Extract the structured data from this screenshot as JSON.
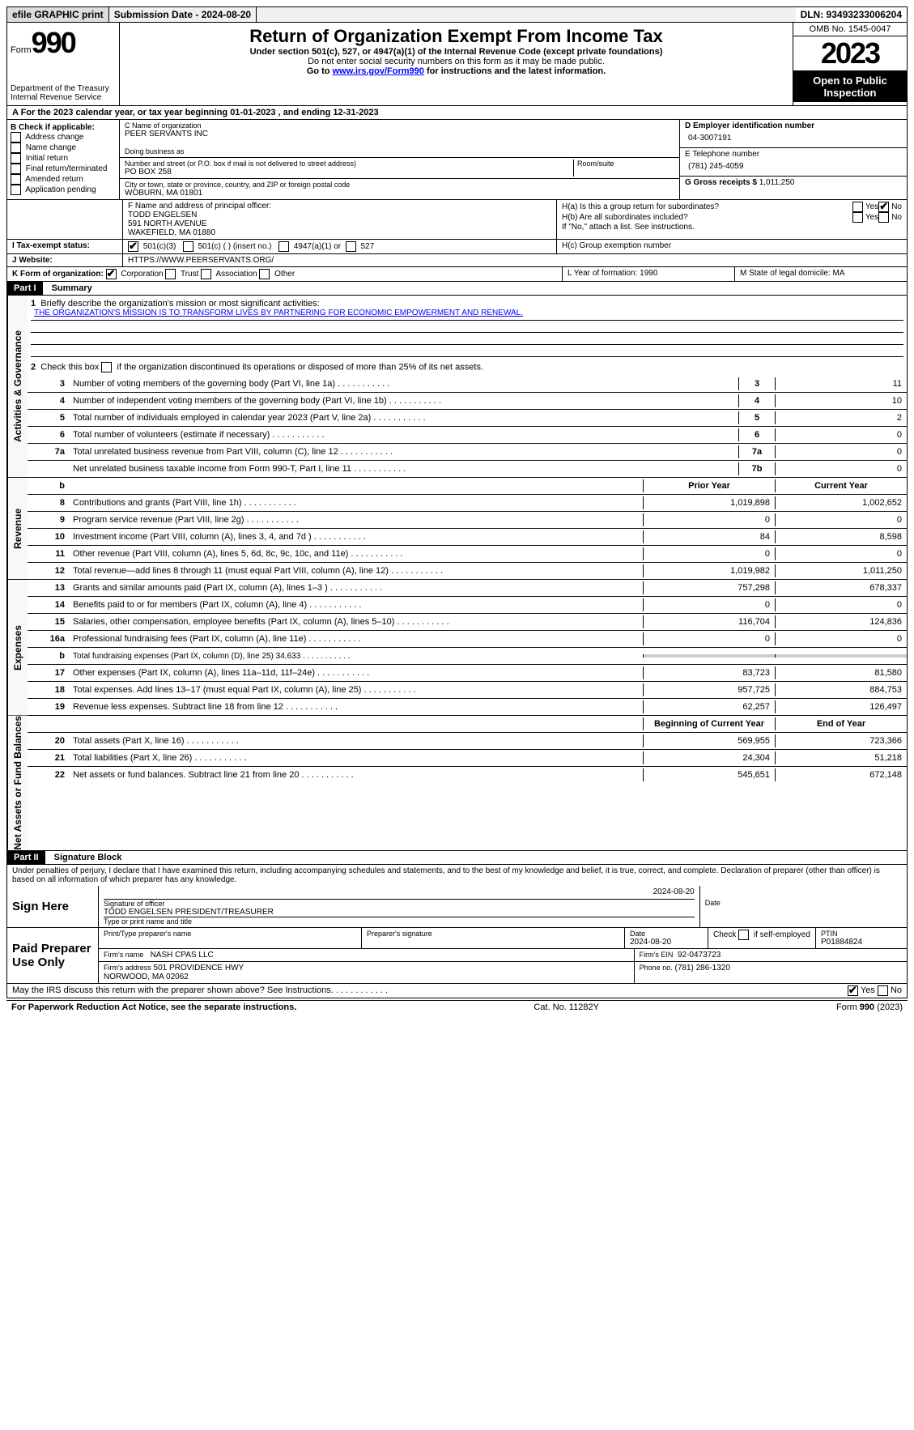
{
  "topbar": {
    "efile": "efile GRAPHIC print",
    "submission": "Submission Date - 2024-08-20",
    "dln": "DLN: 93493233006204"
  },
  "header": {
    "form_label": "Form",
    "form_num": "990",
    "dept": "Department of the Treasury\nInternal Revenue Service",
    "title": "Return of Organization Exempt From Income Tax",
    "sub1": "Under section 501(c), 527, or 4947(a)(1) of the Internal Revenue Code (except private foundations)",
    "sub2": "Do not enter social security numbers on this form as it may be made public.",
    "sub3_pre": "Go to ",
    "sub3_link": "www.irs.gov/Form990",
    "sub3_post": " for instructions and the latest information.",
    "omb": "OMB No. 1545-0047",
    "year": "2023",
    "inspect": "Open to Public Inspection"
  },
  "row_a": "A For the 2023 calendar year, or tax year beginning 01-01-2023    , and ending 12-31-2023",
  "col_b": {
    "label": "B Check if applicable:",
    "items": [
      "Address change",
      "Name change",
      "Initial return",
      "Final return/terminated",
      "Amended return",
      "Application pending"
    ]
  },
  "col_c": {
    "name_label": "C Name of organization",
    "name": "PEER SERVANTS INC",
    "dba": "Doing business as",
    "addr_label": "Number and street (or P.O. box if mail is not delivered to street address)",
    "addr": "PO BOX 258",
    "room": "Room/suite",
    "city_label": "City or town, state or province, country, and ZIP or foreign postal code",
    "city": "WOBURN, MA   01801",
    "officer_label": "F  Name and address of principal officer:",
    "officer": "TODD ENGELSEN\n591 NORTH AVENUE\nWAKEFIELD, MA   01880"
  },
  "col_d": {
    "ein_label": "D Employer identification number",
    "ein": "04-3007191",
    "tel_label": "E Telephone number",
    "tel": "(781) 245-4059",
    "gross_label": "G Gross receipts $ ",
    "gross": "1,011,250",
    "ha": "H(a)  Is this a group return for subordinates?",
    "hb": "H(b)  Are all subordinates included?",
    "hb_note": "If \"No,\" attach a list. See instructions.",
    "hc": "H(c)  Group exemption number"
  },
  "tax_exempt": {
    "label": "I   Tax-exempt status:",
    "o1": "501(c)(3)",
    "o2": "501(c) (  ) (insert no.)",
    "o3": "4947(a)(1) or",
    "o4": "527"
  },
  "website": {
    "label": "J   Website:",
    "value": "HTTPS://WWW.PEERSERVANTS.ORG/"
  },
  "row_k": {
    "label": "K Form of organization:",
    "opts": [
      "Corporation",
      "Trust",
      "Association",
      "Other"
    ],
    "l": "L Year of formation: 1990",
    "m": "M State of legal domicile: MA"
  },
  "part1": {
    "hdr": "Part I",
    "title": "Summary",
    "side_gov": "Activities & Governance",
    "side_rev": "Revenue",
    "side_exp": "Expenses",
    "side_net": "Net Assets or Fund Balances",
    "l1": "Briefly describe the organization's mission or most significant activities:",
    "mission": "THE ORGANIZATION'S MISSION IS TO TRANSFORM LIVES BY PARTNERING FOR ECONOMIC EMPOWERMENT AND RENEWAL.",
    "l2": "Check this box        if the organization discontinued its operations or disposed of more than 25% of its net assets.",
    "lines_gov": [
      {
        "n": "3",
        "t": "Number of voting members of the governing body (Part VI, line 1a)",
        "b": "3",
        "v": "11"
      },
      {
        "n": "4",
        "t": "Number of independent voting members of the governing body (Part VI, line 1b)",
        "b": "4",
        "v": "10"
      },
      {
        "n": "5",
        "t": "Total number of individuals employed in calendar year 2023 (Part V, line 2a)",
        "b": "5",
        "v": "2"
      },
      {
        "n": "6",
        "t": "Total number of volunteers (estimate if necessary)",
        "b": "6",
        "v": "0"
      },
      {
        "n": "7a",
        "t": "Total unrelated business revenue from Part VIII, column (C), line 12",
        "b": "7a",
        "v": "0"
      },
      {
        "n": "",
        "t": "Net unrelated business taxable income from Form 990-T, Part I, line 11",
        "b": "7b",
        "v": "0"
      }
    ],
    "col_hdrs": {
      "b": "b",
      "prior": "Prior Year",
      "curr": "Current Year"
    },
    "lines_rev": [
      {
        "n": "8",
        "t": "Contributions and grants (Part VIII, line 1h)",
        "p": "1,019,898",
        "c": "1,002,652"
      },
      {
        "n": "9",
        "t": "Program service revenue (Part VIII, line 2g)",
        "p": "0",
        "c": "0"
      },
      {
        "n": "10",
        "t": "Investment income (Part VIII, column (A), lines 3, 4, and 7d )",
        "p": "84",
        "c": "8,598"
      },
      {
        "n": "11",
        "t": "Other revenue (Part VIII, column (A), lines 5, 6d, 8c, 9c, 10c, and 11e)",
        "p": "0",
        "c": "0"
      },
      {
        "n": "12",
        "t": "Total revenue—add lines 8 through 11 (must equal Part VIII, column (A), line 12)",
        "p": "1,019,982",
        "c": "1,011,250"
      }
    ],
    "lines_exp": [
      {
        "n": "13",
        "t": "Grants and similar amounts paid (Part IX, column (A), lines 1–3 )",
        "p": "757,298",
        "c": "678,337"
      },
      {
        "n": "14",
        "t": "Benefits paid to or for members (Part IX, column (A), line 4)",
        "p": "0",
        "c": "0"
      },
      {
        "n": "15",
        "t": "Salaries, other compensation, employee benefits (Part IX, column (A), lines 5–10)",
        "p": "116,704",
        "c": "124,836"
      },
      {
        "n": "16a",
        "t": "Professional fundraising fees (Part IX, column (A), line 11e)",
        "p": "0",
        "c": "0"
      },
      {
        "n": "b",
        "t": "Total fundraising expenses (Part IX, column (D), line 25) 34,633",
        "p": "shade",
        "c": "shade"
      },
      {
        "n": "17",
        "t": "Other expenses (Part IX, column (A), lines 11a–11d, 11f–24e)",
        "p": "83,723",
        "c": "81,580"
      },
      {
        "n": "18",
        "t": "Total expenses. Add lines 13–17 (must equal Part IX, column (A), line 25)",
        "p": "957,725",
        "c": "884,753"
      },
      {
        "n": "19",
        "t": "Revenue less expenses. Subtract line 18 from line 12",
        "p": "62,257",
        "c": "126,497"
      }
    ],
    "net_hdrs": {
      "beg": "Beginning of Current Year",
      "end": "End of Year"
    },
    "lines_net": [
      {
        "n": "20",
        "t": "Total assets (Part X, line 16)",
        "p": "569,955",
        "c": "723,366"
      },
      {
        "n": "21",
        "t": "Total liabilities (Part X, line 26)",
        "p": "24,304",
        "c": "51,218"
      },
      {
        "n": "22",
        "t": "Net assets or fund balances. Subtract line 21 from line 20",
        "p": "545,651",
        "c": "672,148"
      }
    ]
  },
  "part2": {
    "hdr": "Part II",
    "title": "Signature Block",
    "decl": "Under penalties of perjury, I declare that I have examined this return, including accompanying schedules and statements, and to the best of my knowledge and belief, it is true, correct, and complete. Declaration of preparer (other than officer) is based on all information of which preparer has any knowledge.",
    "sign_here": "Sign Here",
    "sig_officer": "Signature of officer",
    "officer_name": "TODD ENGELSEN  PRESIDENT/TREASURER",
    "type_name": "Type or print name and title",
    "date_label": "Date",
    "date": "2024-08-20",
    "paid": "Paid Preparer Use Only",
    "prep_name_label": "Print/Type preparer's name",
    "prep_sig_label": "Preparer's signature",
    "prep_date": "2024-08-20",
    "self_emp": "Check         if self-employed",
    "ptin_label": "PTIN",
    "ptin": "P01884824",
    "firm_name_label": "Firm's name",
    "firm_name": "NASH CPAS LLC",
    "firm_ein_label": "Firm's EIN",
    "firm_ein": "92-0473723",
    "firm_addr_label": "Firm's address",
    "firm_addr": "501 PROVIDENCE HWY\nNORWOOD, MA   02062",
    "phone_label": "Phone no.",
    "phone": "(781) 286-1320",
    "discuss": "May the IRS discuss this return with the preparer shown above? See Instructions."
  },
  "footer": {
    "left": "For Paperwork Reduction Act Notice, see the separate instructions.",
    "mid": "Cat. No. 11282Y",
    "right_pre": "Form ",
    "right_b": "990",
    "right_post": " (2023)"
  }
}
